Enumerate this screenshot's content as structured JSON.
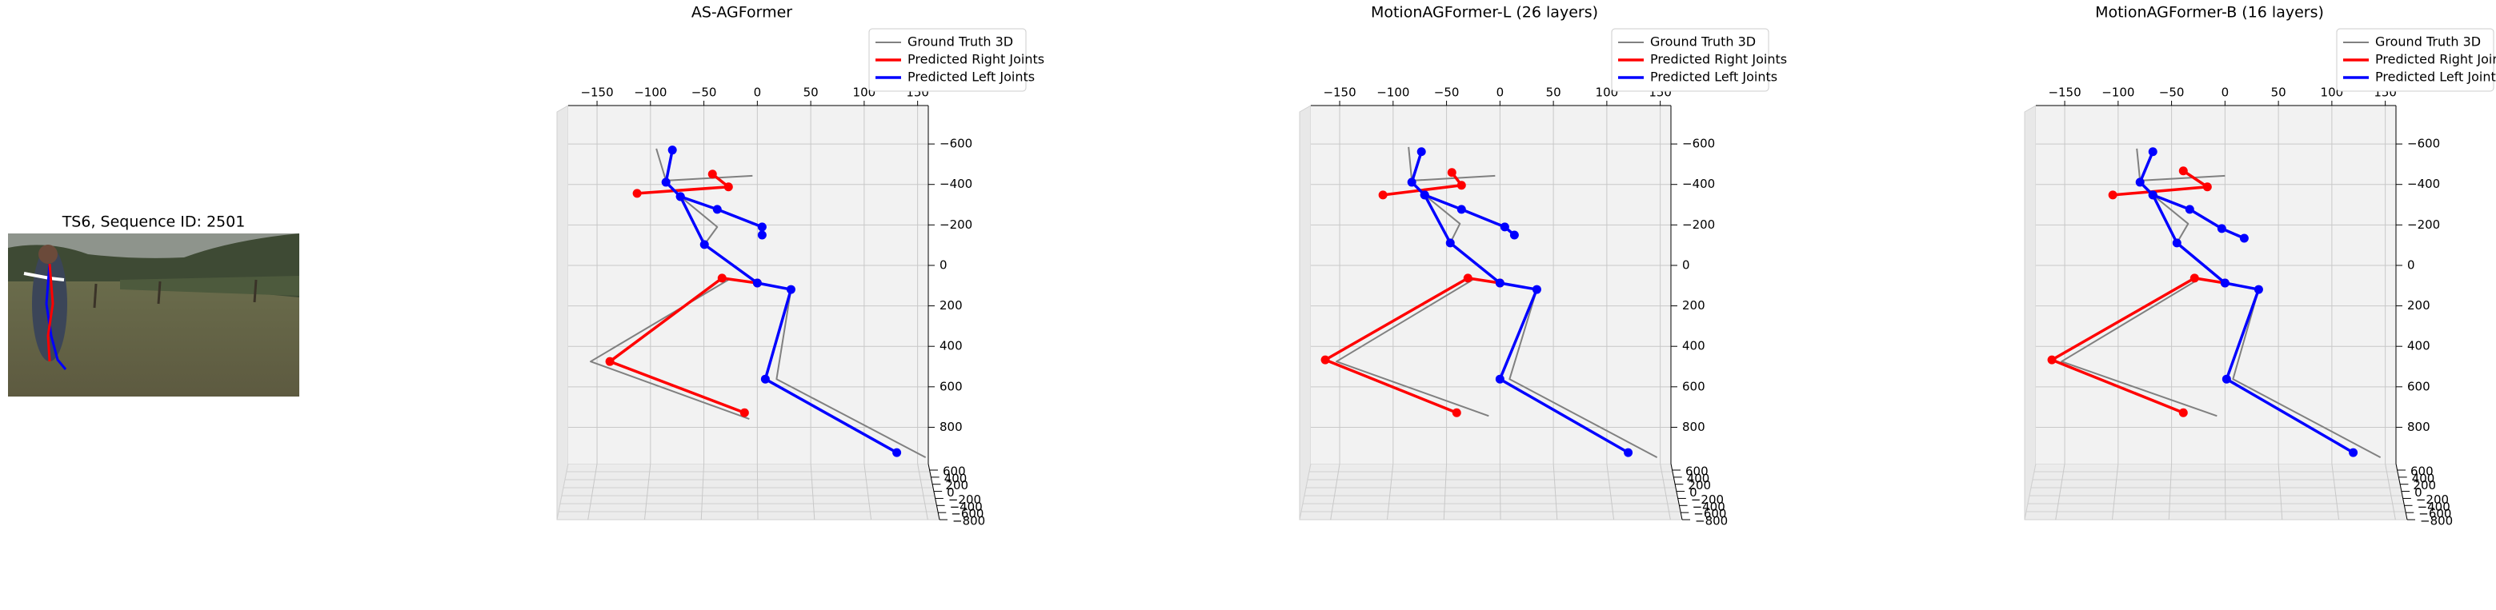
{
  "chart_data": [
    {
      "type": "image",
      "title": "TS6, Sequence ID: 2501"
    },
    {
      "type": "line",
      "title": "AS-AGFormer",
      "legend": "upper right",
      "xlim": [
        -177,
        160
      ],
      "ylim": [
        -790,
        980
      ],
      "xticks": [
        {
          "value": -150,
          "label": "−150"
        },
        {
          "value": -100,
          "label": "−100"
        },
        {
          "value": -50,
          "label": "−50"
        },
        0,
        50,
        100,
        150
      ],
      "yticks": [
        {
          "value": -600,
          "label": "−600"
        },
        {
          "value": -400,
          "label": "−400"
        },
        {
          "value": -200,
          "label": "−200"
        },
        0,
        200,
        400,
        600,
        800
      ],
      "zticks": [
        600,
        400,
        200,
        0,
        {
          "value": -200,
          "label": "−200"
        },
        {
          "value": -400,
          "label": "−400"
        },
        {
          "value": -600,
          "label": "−600"
        },
        {
          "value": -800,
          "label": "−800"
        }
      ],
      "series": [
        {
          "name": "Ground Truth 3D",
          "color": "#808080",
          "marker": false,
          "x": [
            -94.5,
            -85.5,
            -4.5,
            null,
            -72,
            -37.5,
            -49.5,
            null,
            -27,
            -156,
            -7.5,
            null,
            31.5,
            18,
            157.5
          ],
          "values": [
            -577,
            -419,
            -443,
            null,
            -340,
            -190,
            -103,
            null,
            71,
            475,
            759,
            null,
            119,
            562,
            949
          ]
        },
        {
          "name": "Predicted Right Joints",
          "color": "#ff0000",
          "marker": true,
          "x": [
            -42,
            -27,
            -112.5,
            null,
            0,
            -33,
            -138,
            -12
          ],
          "values": [
            -451,
            -388,
            -356,
            null,
            87,
            63,
            475,
            728
          ]
        },
        {
          "name": "Predicted Left Joints",
          "color": "#0000ff",
          "marker": true,
          "x": [
            -79.5,
            -85.5,
            -72,
            -37.5,
            4.5,
            4.5,
            null,
            -72,
            -49.5,
            0,
            31.5,
            7.5,
            130.5
          ],
          "values": [
            -570,
            -411,
            -340,
            -277,
            -190,
            -150,
            null,
            -340,
            -103,
            87,
            119,
            562,
            925
          ]
        }
      ]
    },
    {
      "type": "line",
      "title": "MotionAGFormer-L (26 layers)",
      "legend": "upper right",
      "xlim": [
        -177,
        160
      ],
      "ylim": [
        -790,
        980
      ],
      "xticks": [
        {
          "value": -150,
          "label": "−150"
        },
        {
          "value": -100,
          "label": "−100"
        },
        {
          "value": -50,
          "label": "−50"
        },
        0,
        50,
        100,
        150
      ],
      "yticks": [
        {
          "value": -600,
          "label": "−600"
        },
        {
          "value": -400,
          "label": "−400"
        },
        {
          "value": -200,
          "label": "−200"
        },
        0,
        200,
        400,
        600,
        800
      ],
      "zticks": [
        600,
        400,
        200,
        0,
        {
          "value": -200,
          "label": "−200"
        },
        {
          "value": -400,
          "label": "−400"
        },
        {
          "value": -600,
          "label": "−600"
        },
        {
          "value": -800,
          "label": "−800"
        }
      ],
      "series": [
        {
          "name": "Ground Truth 3D",
          "color": "#808080",
          "marker": false,
          "x": [
            -85.5,
            -82.5,
            -4.5,
            null,
            -70.5,
            -37.5,
            -46.5,
            null,
            -25.5,
            -153,
            -10.5,
            null,
            34.5,
            9,
            147
          ],
          "values": [
            -585,
            -419,
            -443,
            null,
            -348,
            -206,
            -111,
            null,
            71,
            475,
            744,
            null,
            119,
            562,
            949
          ]
        },
        {
          "name": "Predicted Right Joints",
          "color": "#ff0000",
          "marker": true,
          "x": [
            -45,
            -36,
            -109.5,
            null,
            0,
            -30,
            -163.5,
            -40.5
          ],
          "values": [
            -459,
            -396,
            -348,
            null,
            87,
            63,
            467,
            728
          ]
        },
        {
          "name": "Predicted Left Joints",
          "color": "#0000ff",
          "marker": true,
          "x": [
            -73.5,
            -82.5,
            -70.5,
            -36,
            4.5,
            13.5,
            null,
            -70.5,
            -46.5,
            0,
            34.5,
            0,
            120
          ],
          "values": [
            -562,
            -411,
            -348,
            -277,
            -190,
            -150,
            null,
            -348,
            -111,
            87,
            119,
            562,
            925
          ]
        }
      ]
    },
    {
      "type": "line",
      "title": "MotionAGFormer-B (16 layers)",
      "legend": "upper right",
      "xlim": [
        -177,
        160
      ],
      "ylim": [
        -790,
        980
      ],
      "xticks": [
        {
          "value": -150,
          "label": "−150"
        },
        {
          "value": -100,
          "label": "−100"
        },
        {
          "value": -50,
          "label": "−50"
        },
        0,
        50,
        100,
        150
      ],
      "yticks": [
        {
          "value": -600,
          "label": "−600"
        },
        {
          "value": -400,
          "label": "−400"
        },
        {
          "value": -200,
          "label": "−200"
        },
        0,
        200,
        400,
        600,
        800
      ],
      "zticks": [
        600,
        400,
        200,
        0,
        {
          "value": -200,
          "label": "−200"
        },
        {
          "value": -400,
          "label": "−400"
        },
        {
          "value": -600,
          "label": "−600"
        },
        {
          "value": -800,
          "label": "−800"
        }
      ],
      "series": [
        {
          "name": "Ground Truth 3D",
          "color": "#808080",
          "marker": false,
          "x": [
            -82.5,
            -79.5,
            0,
            null,
            -67.5,
            -34.5,
            -45,
            null,
            -25.5,
            -153,
            -7.5,
            null,
            31.5,
            7.5,
            145.5
          ],
          "values": [
            -577,
            -419,
            -443,
            null,
            -348,
            -206,
            -111,
            null,
            71,
            475,
            744,
            null,
            119,
            562,
            949
          ]
        },
        {
          "name": "Predicted Right Joints",
          "color": "#ff0000",
          "marker": true,
          "x": [
            -39,
            -16.5,
            -105,
            null,
            0,
            -28.5,
            -162,
            -39
          ],
          "values": [
            -467,
            -388,
            -348,
            null,
            87,
            63,
            467,
            728
          ]
        },
        {
          "name": "Predicted Left Joints",
          "color": "#0000ff",
          "marker": true,
          "x": [
            -67.5,
            -79.5,
            -67.5,
            -33,
            -3,
            18,
            null,
            -67.5,
            -45,
            0,
            31.5,
            1.5,
            120
          ],
          "values": [
            -562,
            -411,
            -348,
            -277,
            -182,
            -134,
            null,
            -348,
            -111,
            87,
            119,
            562,
            925
          ]
        }
      ]
    }
  ]
}
